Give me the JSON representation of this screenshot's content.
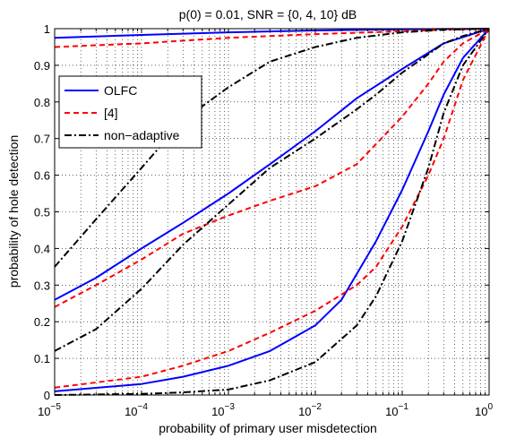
{
  "chart_data": {
    "type": "line",
    "title": "p(0) = 0.01,  SNR = {0, 4, 10} dB",
    "xlabel": "probability of primary user misdetection",
    "ylabel": "probability of hole detection",
    "xscale": "log",
    "xlim": [
      1e-05,
      1
    ],
    "ylim": [
      0,
      1
    ],
    "x_ticks": [
      {
        "value": 1e-05,
        "base": "10",
        "exp": "−5"
      },
      {
        "value": 0.0001,
        "base": "10",
        "exp": "−4"
      },
      {
        "value": 0.001,
        "base": "10",
        "exp": "−3"
      },
      {
        "value": 0.01,
        "base": "10",
        "exp": "−2"
      },
      {
        "value": 0.1,
        "base": "10",
        "exp": "−1"
      },
      {
        "value": 1,
        "base": "10",
        "exp": "0"
      }
    ],
    "y_ticks": [
      0,
      0.1,
      0.2,
      0.3,
      0.4,
      0.5,
      0.6,
      0.7,
      0.8,
      0.9,
      1
    ],
    "y_tick_labels": [
      "0",
      "0.1",
      "0.2",
      "0.3",
      "0.4",
      "0.5",
      "0.6",
      "0.7",
      "0.8",
      "0.9",
      "1"
    ],
    "grid": "dotted, major and minor",
    "legend": {
      "position": "upper-left",
      "entries": [
        {
          "label": "OLFC",
          "color": "#0000ff",
          "style": "solid"
        },
        {
          "label": "[4]",
          "color": "#ff0000",
          "style": "dashed"
        },
        {
          "label": "non−adaptive",
          "color": "#000000",
          "style": "dashdot"
        }
      ]
    },
    "series": [
      {
        "legend_entry": "OLFC",
        "color": "#0000ff",
        "style": "solid",
        "x": [
          1e-05,
          0.0001,
          0.001,
          0.01,
          0.1,
          1
        ],
        "y": [
          0.975,
          0.983,
          0.99,
          0.995,
          0.998,
          1
        ]
      },
      {
        "legend_entry": "OLFC",
        "color": "#0000ff",
        "style": "solid",
        "x": [
          1e-05,
          3e-05,
          0.0001,
          0.0003,
          0.001,
          0.003,
          0.01,
          0.03,
          0.1,
          0.3,
          1
        ],
        "y": [
          0.26,
          0.32,
          0.4,
          0.47,
          0.55,
          0.63,
          0.72,
          0.81,
          0.89,
          0.96,
          1
        ]
      },
      {
        "legend_entry": "OLFC",
        "color": "#0000ff",
        "style": "solid",
        "x": [
          1e-05,
          0.0001,
          0.0003,
          0.001,
          0.003,
          0.01,
          0.02,
          0.05,
          0.1,
          0.2,
          0.3,
          0.5,
          1
        ],
        "y": [
          0.01,
          0.03,
          0.05,
          0.08,
          0.12,
          0.19,
          0.26,
          0.42,
          0.56,
          0.72,
          0.82,
          0.92,
          1
        ]
      },
      {
        "legend_entry": "[4]",
        "color": "#ff0000",
        "style": "dashed",
        "x": [
          1e-05,
          0.0001,
          0.001,
          0.01,
          0.1,
          0.3,
          1
        ],
        "y": [
          0.95,
          0.96,
          0.975,
          0.985,
          0.993,
          0.997,
          1
        ]
      },
      {
        "legend_entry": "[4]",
        "color": "#ff0000",
        "style": "dashed",
        "x": [
          1e-05,
          3e-05,
          0.0001,
          0.0003,
          0.001,
          0.003,
          0.01,
          0.03,
          0.1,
          0.2,
          0.3,
          0.5,
          1
        ],
        "y": [
          0.24,
          0.3,
          0.37,
          0.44,
          0.49,
          0.53,
          0.57,
          0.63,
          0.76,
          0.85,
          0.91,
          0.96,
          1
        ]
      },
      {
        "legend_entry": "[4]",
        "color": "#ff0000",
        "style": "dashed",
        "x": [
          1e-05,
          0.0001,
          0.0003,
          0.001,
          0.003,
          0.01,
          0.03,
          0.05,
          0.1,
          0.2,
          0.3,
          0.5,
          1
        ],
        "y": [
          0.02,
          0.05,
          0.08,
          0.12,
          0.17,
          0.23,
          0.3,
          0.35,
          0.46,
          0.6,
          0.7,
          0.86,
          1
        ]
      },
      {
        "legend_entry": "non−adaptive",
        "color": "#000000",
        "style": "dashdot",
        "x": [
          1e-05,
          3e-05,
          0.0001,
          0.0003,
          0.001,
          0.003,
          0.01,
          0.03,
          0.1,
          0.3,
          1
        ],
        "y": [
          0.35,
          0.48,
          0.62,
          0.75,
          0.84,
          0.91,
          0.95,
          0.975,
          0.99,
          0.997,
          1
        ]
      },
      {
        "legend_entry": "non−adaptive",
        "color": "#000000",
        "style": "dashdot",
        "x": [
          1e-05,
          3e-05,
          0.0001,
          0.0003,
          0.001,
          0.003,
          0.01,
          0.03,
          0.05,
          0.1,
          0.2,
          0.3,
          0.5,
          1
        ],
        "y": [
          0.12,
          0.18,
          0.29,
          0.41,
          0.52,
          0.62,
          0.7,
          0.78,
          0.82,
          0.88,
          0.93,
          0.96,
          0.98,
          1
        ]
      },
      {
        "legend_entry": "non−adaptive",
        "color": "#000000",
        "style": "dashdot",
        "x": [
          1e-05,
          0.0001,
          0.0003,
          0.001,
          0.003,
          0.01,
          0.03,
          0.05,
          0.1,
          0.2,
          0.3,
          0.5,
          1
        ],
        "y": [
          0.0,
          0.003,
          0.007,
          0.015,
          0.04,
          0.09,
          0.19,
          0.27,
          0.42,
          0.62,
          0.77,
          0.9,
          1
        ]
      }
    ]
  }
}
